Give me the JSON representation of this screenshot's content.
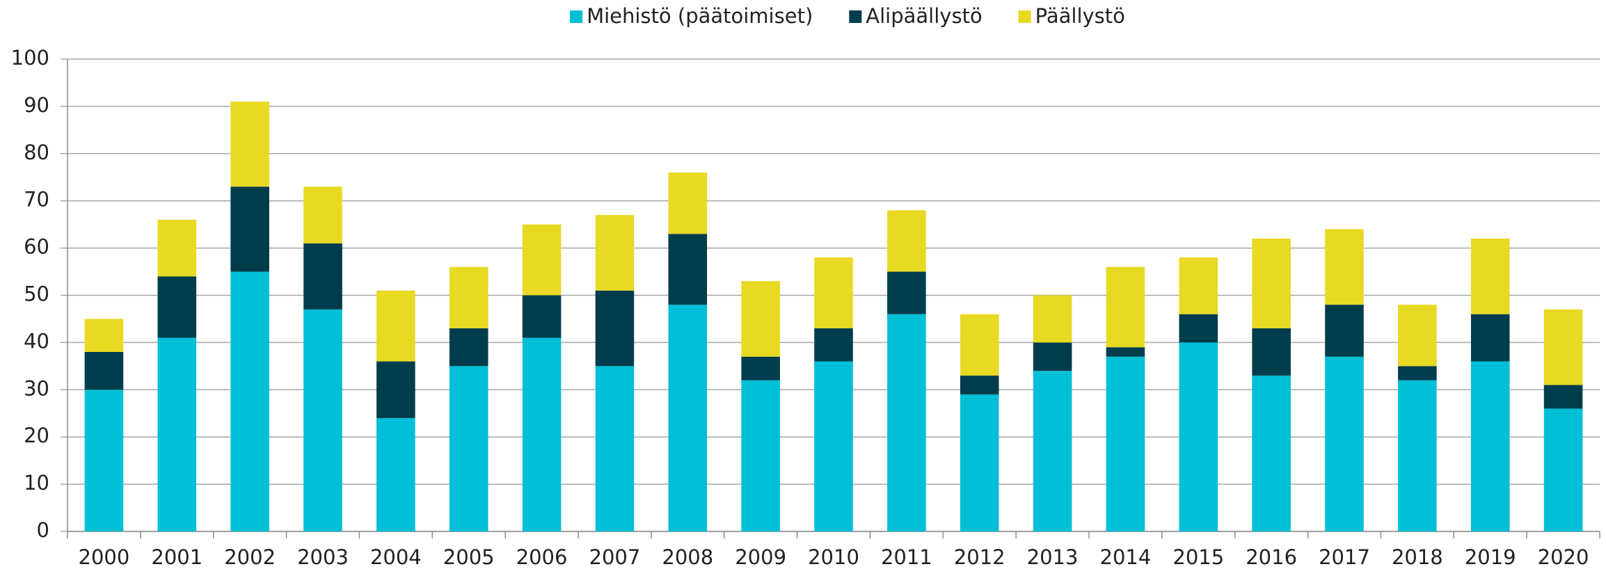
{
  "chart_data": {
    "type": "stacked_bar",
    "categories": [
      "2000",
      "2001",
      "2002",
      "2003",
      "2004",
      "2005",
      "2006",
      "2007",
      "2008",
      "2009",
      "2010",
      "2011",
      "2012",
      "2013",
      "2014",
      "2015",
      "2016",
      "2017",
      "2018",
      "2019",
      "2020"
    ],
    "series": [
      {
        "name": "Miehistö (päätoimiset)",
        "color": "#00bfd6",
        "values": [
          30,
          41,
          55,
          47,
          24,
          35,
          41,
          35,
          48,
          32,
          36,
          46,
          29,
          34,
          37,
          40,
          33,
          37,
          32,
          36,
          26
        ]
      },
      {
        "name": "Alipäällystö",
        "color": "#003d4c",
        "values": [
          8,
          13,
          18,
          14,
          12,
          8,
          9,
          16,
          15,
          5,
          7,
          9,
          4,
          6,
          2,
          6,
          10,
          11,
          3,
          10,
          5
        ]
      },
      {
        "name": "Päällystö",
        "color": "#e8d923",
        "values": [
          7,
          12,
          18,
          12,
          15,
          13,
          15,
          16,
          13,
          16,
          15,
          13,
          13,
          10,
          17,
          12,
          19,
          16,
          13,
          16,
          16
        ]
      }
    ],
    "ylim": [
      0,
      100
    ],
    "yticks": [
      0,
      10,
      20,
      30,
      40,
      50,
      60,
      70,
      80,
      90,
      100
    ],
    "grid": true,
    "legend": "top"
  }
}
